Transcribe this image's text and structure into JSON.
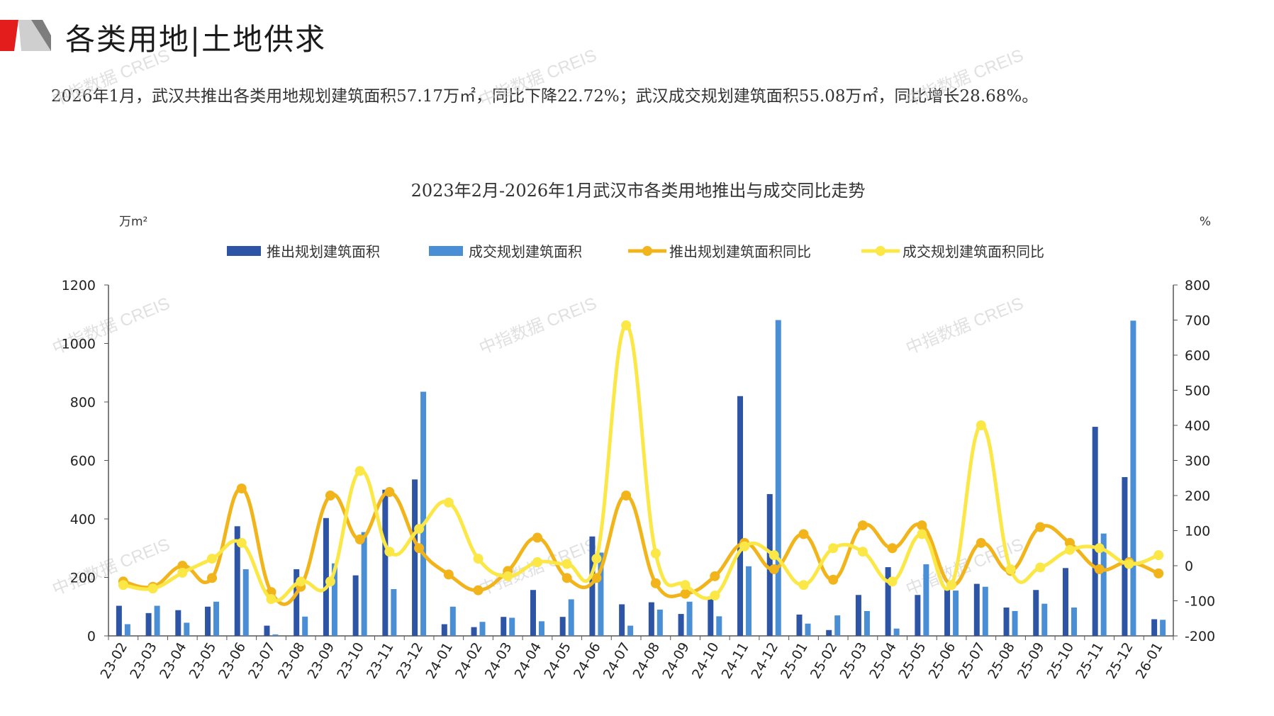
{
  "header": {
    "title": "各类用地|土地供求",
    "summary": "2026年1月，武汉共推出各类用地规划建筑面积57.17万㎡，同比下降22.72%；武汉成交规划建筑面积55.08万㎡，同比增长28.68%。"
  },
  "watermark": "中指数据 CREIS",
  "colors": {
    "supply_bar": "#2e55a5",
    "deal_bar": "#4a8fd6",
    "supply_yoy": "#f1b41a",
    "deal_yoy": "#fbe745",
    "logo_red": "#e31d1c",
    "logo_gray": "#9b9b9b"
  },
  "chart_data": {
    "type": "bar",
    "title": "2023年2月-2026年1月武汉市各类用地推出与成交同比走势",
    "y_left_unit": "万m²",
    "y_right_unit": "%",
    "y_left_ticks": [
      "1200",
      "1000",
      "800",
      "600",
      "400",
      "200",
      "0"
    ],
    "y_right_ticks": [
      "800",
      "700",
      "600",
      "500",
      "400",
      "300",
      "200",
      "100",
      "0",
      "-100",
      "-200"
    ],
    "ylim_left": [
      0,
      1200
    ],
    "ylim_right": [
      -200,
      800
    ],
    "legend_position": "top",
    "categories": [
      "23-02",
      "23-03",
      "23-04",
      "23-05",
      "23-06",
      "23-07",
      "23-08",
      "23-09",
      "23-10",
      "23-11",
      "23-12",
      "24-01",
      "24-02",
      "24-03",
      "24-04",
      "24-05",
      "24-06",
      "24-07",
      "24-08",
      "24-09",
      "24-10",
      "24-11",
      "24-12",
      "25-01",
      "25-02",
      "25-03",
      "25-04",
      "25-05",
      "25-06",
      "25-07",
      "25-08",
      "25-09",
      "25-10",
      "25-11",
      "25-12",
      "26-01"
    ],
    "series": [
      {
        "name": "推出规划建筑面积",
        "type": "bar",
        "axis": "left",
        "values": [
          103,
          78,
          88,
          100,
          375,
          35,
          228,
          403,
          207,
          500,
          535,
          40,
          30,
          65,
          157,
          65,
          340,
          108,
          115,
          75,
          135,
          820,
          485,
          73,
          20,
          140,
          235,
          140,
          165,
          178,
          97,
          157,
          232,
          715,
          543,
          57
        ]
      },
      {
        "name": "成交规划建筑面积",
        "type": "bar",
        "axis": "left",
        "values": [
          40,
          103,
          45,
          117,
          228,
          5,
          66,
          248,
          355,
          160,
          835,
          100,
          48,
          62,
          50,
          125,
          285,
          35,
          90,
          117,
          67,
          238,
          1080,
          42,
          70,
          85,
          25,
          245,
          155,
          168,
          85,
          110,
          97,
          350,
          1078,
          55
        ]
      },
      {
        "name": "推出规划建筑面积同比",
        "type": "line",
        "axis": "right",
        "values": [
          -45,
          -60,
          0,
          -35,
          220,
          -75,
          -60,
          200,
          75,
          210,
          50,
          -25,
          -70,
          -15,
          80,
          -35,
          -35,
          200,
          -50,
          -80,
          -30,
          65,
          -10,
          90,
          -40,
          115,
          50,
          115,
          -55,
          65,
          -15,
          110,
          65,
          -10,
          10,
          -22
        ]
      },
      {
        "name": "成交规划建筑面积同比",
        "type": "line",
        "axis": "right",
        "values": [
          -55,
          -65,
          -20,
          20,
          65,
          -95,
          -45,
          -45,
          270,
          40,
          105,
          180,
          20,
          -30,
          10,
          5,
          20,
          685,
          35,
          -55,
          -85,
          55,
          30,
          -55,
          50,
          40,
          -45,
          90,
          -55,
          400,
          -10,
          -5,
          45,
          50,
          5,
          30
        ]
      }
    ]
  }
}
